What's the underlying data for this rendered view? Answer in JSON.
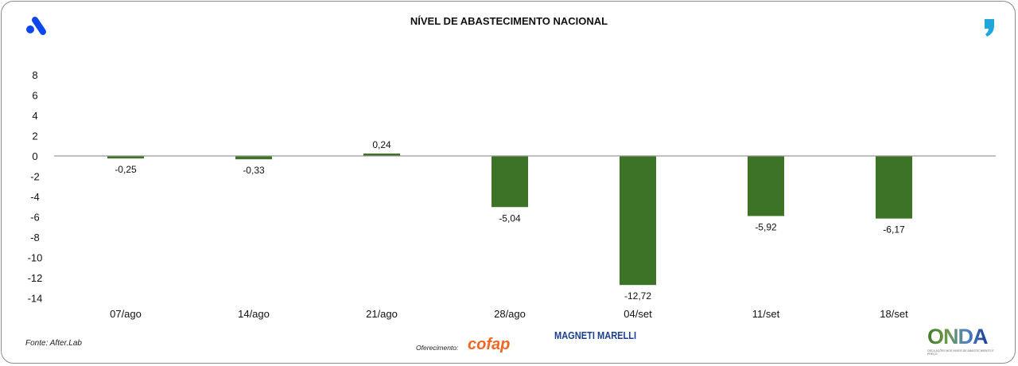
{
  "header": {
    "title": "NÍVEL DE ABASTECIMENTO NACIONAL"
  },
  "footer": {
    "source": "Fonte: After.Lab",
    "sponsor_label": "Oferecimento:",
    "sponsors": [
      "cofap",
      "MAGNETI MARELLI"
    ],
    "onda_logo": "ONDA",
    "onda_tagline": "OSCILAÇÕES NOS NÍVEIS DE ABASTECIMENTO E PREÇO"
  },
  "colors": {
    "bar": "#3d7326",
    "brand_blue": "#0a47f0",
    "quote_blue": "#1fa6db"
  },
  "chart_data": {
    "type": "bar",
    "title": "NÍVEL DE ABASTECIMENTO NACIONAL",
    "categories": [
      "07/ago",
      "14/ago",
      "21/ago",
      "28/ago",
      "04/set",
      "11/set",
      "18/set"
    ],
    "values": [
      -0.25,
      -0.33,
      0.24,
      -5.04,
      -12.72,
      -5.92,
      -6.17
    ],
    "labels": [
      "-0,25",
      "-0,33",
      "0,24",
      "-5,04",
      "-12,72",
      "-5,92",
      "-6,17"
    ],
    "yticks": [
      8,
      6,
      4,
      2,
      0,
      -2,
      -4,
      -6,
      -8,
      -10,
      -12,
      -14
    ],
    "ylim": [
      -14,
      8
    ],
    "xlabel": "",
    "ylabel": "",
    "grid": false,
    "legend": "none"
  }
}
